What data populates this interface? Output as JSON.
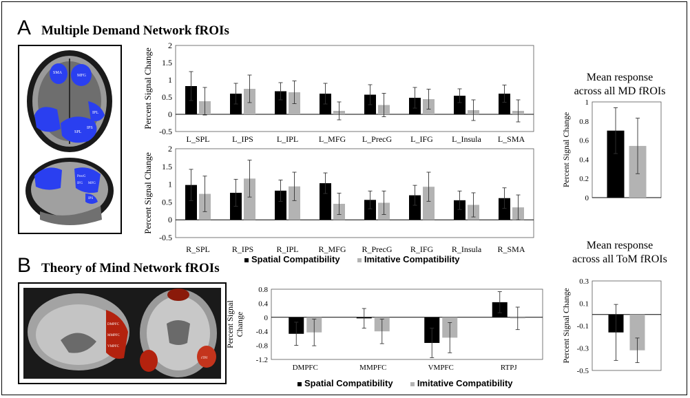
{
  "panels": {
    "a": {
      "letter": "A",
      "title": "Multiple Demand Network fROIs"
    },
    "b": {
      "letter": "B",
      "title": "Theory of Mind Network fROIs"
    }
  },
  "brain_labels": {
    "axial_md": [
      "SMA",
      "MFG",
      "IPL",
      "IPS",
      "SPL"
    ],
    "sag_md": [
      "PrecG",
      "IFG",
      "MFG",
      "IPS"
    ],
    "sag_tom": [
      "DMPFC",
      "MMPFC",
      "VMPFC"
    ],
    "axial_tom": [
      "rTPJ"
    ]
  },
  "mean_md_title": [
    "Mean response",
    "across all MD fROIs"
  ],
  "mean_tom_title": [
    "Mean response",
    "across all ToM fROIs"
  ],
  "legend": {
    "spatial": "Spatial Compatibility",
    "imitative": "Imitative Compatibility"
  },
  "colors": {
    "spatial": "#000000",
    "imitative": "#b3b3b3",
    "md_roi": "#2a3ff0",
    "tom_roi": "#b3220e"
  },
  "chart_data": [
    {
      "id": "md_left",
      "type": "bar",
      "categories": [
        "L_SPL",
        "L_IPS",
        "L_IPL",
        "L_MFG",
        "L_PrecG",
        "L_IFG",
        "L_Insula",
        "L_SMA"
      ],
      "series": [
        {
          "name": "Spatial Compatibility",
          "values": [
            0.82,
            0.6,
            0.67,
            0.6,
            0.57,
            0.48,
            0.54,
            0.6
          ],
          "errors": [
            0.42,
            0.3,
            0.25,
            0.3,
            0.29,
            0.3,
            0.2,
            0.25
          ]
        },
        {
          "name": "Imitative Compatibility",
          "values": [
            0.38,
            0.74,
            0.64,
            0.1,
            0.27,
            0.44,
            0.12,
            0.1
          ],
          "errors": [
            0.4,
            0.4,
            0.33,
            0.26,
            0.34,
            0.29,
            0.3,
            0.32
          ]
        }
      ],
      "ylabel": "Percent Signal Change",
      "ylim": [
        -0.5,
        2
      ],
      "yticks": [
        "-0.5",
        "0",
        "0.5",
        "1",
        "1.5",
        "2"
      ],
      "ytick_values": [
        -0.5,
        0,
        0.5,
        1,
        1.5,
        2
      ]
    },
    {
      "id": "md_right",
      "type": "bar",
      "categories": [
        "R_SPL",
        "R_IPS",
        "R_IPL",
        "R_MFG",
        "R_PrecG",
        "R_IFG",
        "R_Insula",
        "R_SMA"
      ],
      "series": [
        {
          "name": "Spatial Compatibility",
          "values": [
            0.98,
            0.76,
            0.82,
            1.03,
            0.56,
            0.69,
            0.55,
            0.61
          ],
          "errors": [
            0.44,
            0.38,
            0.3,
            0.29,
            0.25,
            0.28,
            0.26,
            0.29
          ]
        },
        {
          "name": "Imitative Compatibility",
          "values": [
            0.73,
            1.16,
            0.94,
            0.45,
            0.48,
            0.93,
            0.42,
            0.35
          ],
          "errors": [
            0.5,
            0.52,
            0.4,
            0.3,
            0.33,
            0.41,
            0.34,
            0.35
          ]
        }
      ],
      "ylabel": "Percent Signal Change",
      "ylim": [
        -0.5,
        2
      ],
      "yticks": [
        "-0.5",
        "0",
        "0.5",
        "1",
        "1.5",
        "2"
      ],
      "ytick_values": [
        -0.5,
        0,
        0.5,
        1,
        1.5,
        2
      ]
    },
    {
      "id": "md_mean",
      "type": "bar",
      "categories": [
        ""
      ],
      "series": [
        {
          "name": "Spatial Compatibility",
          "values": [
            0.7
          ],
          "errors": [
            0.24
          ]
        },
        {
          "name": "Imitative Compatibility",
          "values": [
            0.54
          ],
          "errors": [
            0.29
          ]
        }
      ],
      "ylabel": "Percent Signal Change",
      "ylim": [
        0,
        1
      ],
      "yticks": [
        "0",
        "0.2",
        "0.4",
        "0.6",
        "0.8",
        "1"
      ],
      "ytick_values": [
        0,
        0.2,
        0.4,
        0.6,
        0.8,
        1
      ]
    },
    {
      "id": "tom",
      "type": "bar",
      "categories": [
        "DMPFC",
        "MMPFC",
        "VMPFC",
        "RTPJ"
      ],
      "series": [
        {
          "name": "Spatial Compatibility",
          "values": [
            -0.47,
            -0.03,
            -0.73,
            0.43
          ],
          "errors": [
            0.33,
            0.28,
            0.42,
            0.3
          ]
        },
        {
          "name": "Imitative Compatibility",
          "values": [
            -0.43,
            -0.4,
            -0.58,
            -0.03
          ],
          "errors": [
            0.38,
            0.35,
            0.43,
            0.32
          ]
        }
      ],
      "ylabel": "Percent Signal Change",
      "ylim": [
        -1.2,
        0.8
      ],
      "yticks": [
        "0.8",
        "0.4",
        "0",
        "-0.4",
        "-0.8",
        "-1.2"
      ],
      "ytick_values": [
        0.8,
        0.4,
        0,
        -0.4,
        -0.8,
        -1.2
      ]
    },
    {
      "id": "tom_mean",
      "type": "bar",
      "categories": [
        ""
      ],
      "series": [
        {
          "name": "Spatial Compatibility",
          "values": [
            -0.16
          ],
          "errors": [
            0.25
          ]
        },
        {
          "name": "Imitative Compatibility",
          "values": [
            -0.32
          ],
          "errors": [
            0.11
          ]
        }
      ],
      "ylabel": "Percent Signal Change",
      "ylim": [
        -0.5,
        0.3
      ],
      "yticks": [
        "0.3",
        "0.1",
        "-0.1",
        "-0.3",
        "-0.5"
      ],
      "ytick_values": [
        0.3,
        0.1,
        -0.1,
        -0.3,
        -0.5
      ]
    }
  ]
}
